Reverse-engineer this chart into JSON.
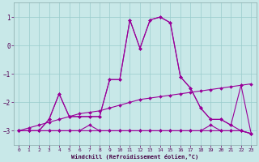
{
  "xlabel": "Windchill (Refroidissement éolien,°C)",
  "xlim": [
    -0.5,
    23.5
  ],
  "ylim": [
    -3.5,
    1.5
  ],
  "yticks": [
    -3,
    -2,
    -1,
    0,
    1
  ],
  "xticks": [
    0,
    1,
    2,
    3,
    4,
    5,
    6,
    7,
    8,
    9,
    10,
    11,
    12,
    13,
    14,
    15,
    16,
    17,
    18,
    19,
    20,
    21,
    22,
    23
  ],
  "bg_color": "#c8e8e8",
  "line_color": "#990099",
  "grid_color": "#99cccc",
  "series": [
    [
      -3.0,
      -3.0,
      -3.0,
      -3.0,
      -3.0,
      -3.0,
      -3.0,
      -3.0,
      -3.0,
      -3.0,
      -3.0,
      -3.0,
      -3.0,
      -3.0,
      -3.0,
      -3.0,
      -3.0,
      -3.0,
      -3.0,
      -3.0,
      -3.0,
      -3.0,
      -3.0,
      -3.1
    ],
    [
      -3.0,
      -3.0,
      -3.0,
      -3.0,
      -3.0,
      -3.0,
      -3.0,
      -2.8,
      -3.0,
      -3.0,
      -3.0,
      -3.0,
      -3.0,
      -3.0,
      -3.0,
      -3.0,
      -3.0,
      -3.0,
      -3.0,
      -2.8,
      -3.0,
      -3.0,
      -3.0,
      -3.1
    ],
    [
      -3.0,
      -3.0,
      -3.0,
      -2.6,
      -1.7,
      -2.5,
      -2.5,
      -2.5,
      -2.5,
      -1.2,
      -1.2,
      0.9,
      -0.1,
      0.9,
      1.0,
      0.8,
      -1.1,
      -1.5,
      -2.2,
      -2.6,
      -2.6,
      -2.8,
      -1.4,
      -3.1
    ],
    [
      -3.0,
      -3.0,
      -3.0,
      -2.6,
      -1.7,
      -2.5,
      -2.5,
      -2.5,
      -2.5,
      -1.2,
      -1.2,
      0.9,
      -0.1,
      0.9,
      1.0,
      0.8,
      -1.1,
      -1.5,
      -2.2,
      -2.6,
      -2.6,
      -2.8,
      -3.0,
      -3.1
    ],
    [
      -3.0,
      -2.9,
      -2.8,
      -2.7,
      -2.6,
      -2.5,
      -2.4,
      -2.35,
      -2.3,
      -2.2,
      -2.1,
      -2.0,
      -1.9,
      -1.85,
      -1.8,
      -1.75,
      -1.7,
      -1.65,
      -1.6,
      -1.55,
      -1.5,
      -1.45,
      -1.4,
      -1.35
    ]
  ]
}
